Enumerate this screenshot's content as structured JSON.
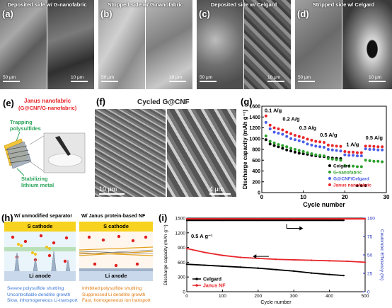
{
  "panels": {
    "a": {
      "label": "(a)",
      "title": "Deposited side w/ G-nanofabric",
      "scale_low": "50 μm",
      "scale_high": "10 μm"
    },
    "b": {
      "label": "(b)",
      "title": "Stripped side w/ G-nanofabric",
      "scale_low": "50 μm",
      "scale_high": "10 μm"
    },
    "c": {
      "label": "(c)",
      "title": "Deposited side w/ Celgard",
      "scale_low": "50 μm",
      "scale_high": "10 μm"
    },
    "d": {
      "label": "(d)",
      "title": "Stripped side w/ Celgard",
      "scale_low": "50 μm",
      "scale_high": "10 μm"
    },
    "e": {
      "label": "(e)",
      "title_1": "Janus nanofabric",
      "title_2": "(G@CNF/G-nanofabric)",
      "callout_top_1": "Trapping",
      "callout_top_2": "polysulfides",
      "callout_bottom_1": "Stabilizing",
      "callout_bottom_2": "lithium metal"
    },
    "f": {
      "label": "(f)",
      "title": "Cycled G@CNF",
      "scale_low": "10 μm",
      "scale_high": "4 μm"
    },
    "g": {
      "label": "(g)",
      "ylabel": "Discharge capacity (mAh g⁻¹)",
      "xlabel": "Cycle number",
      "rates": [
        "0.1 A/g",
        "0.2 A/g",
        "0.3 A/g",
        "0.5 A/g",
        "1 A/g",
        "0.5 A/g"
      ]
    },
    "h": {
      "label": "(h)",
      "left_title": "W/ unmodified separator",
      "right_title": "W/ Janus protein-based NF",
      "cathode": "S cathode",
      "anode": "Li anode",
      "left_notes": [
        "Severe polysulfide shuttling",
        "Uncontrollable dendrite growth",
        "Slow, inhomogeneous Li-transport"
      ],
      "right_notes": [
        "Inhibited polysulfide shuttling",
        "Suppressed Li dendrite growth",
        "Fast, homogeneous ion transport"
      ]
    },
    "i": {
      "label": "(i)",
      "ylabel": "Discharge capacity (mAh g⁻¹)",
      "y2label": "Coulombic Efficiency (%)",
      "xlabel": "Cycle number",
      "rate": "0.5 A g⁻¹"
    }
  },
  "colors": {
    "celgard": "#000000",
    "g_nanofabric": "#2ca02c",
    "g_cnf_celgard": "#4a5ee8",
    "janus": "#e8262b",
    "title_red": "#e8262b",
    "callout_green": "#2aa35a",
    "cathode": "#f7d21e",
    "anode": "#c9d8ea",
    "ce_axis": "#2233bb"
  },
  "chart_data": [
    {
      "type": "scatter",
      "panel": "g",
      "xlabel": "Cycle number",
      "ylabel": "Discharge capacity (mAh g⁻¹)",
      "xlim": [
        0,
        30
      ],
      "ylim": [
        0,
        1600
      ],
      "xticks": [
        0,
        10,
        20,
        30
      ],
      "yticks": [
        0,
        200,
        400,
        600,
        800,
        1000,
        1200,
        1400,
        1600
      ],
      "legend": "bottom-right",
      "annotations": [
        "0.1 A/g",
        "0.2 A/g",
        "0.3 A/g",
        "0.5 A/g",
        "1 A/g",
        "0.5 A/g"
      ],
      "x": [
        1,
        2,
        3,
        4,
        5,
        6,
        7,
        8,
        9,
        10,
        11,
        12,
        13,
        14,
        15,
        16,
        17,
        18,
        19,
        20,
        21,
        22,
        23,
        24,
        25,
        26,
        27,
        28,
        29
      ],
      "series": [
        {
          "name": "Celgard",
          "color": "#000000",
          "values": [
            980,
            900,
            870,
            850,
            820,
            790,
            770,
            750,
            730,
            720,
            710,
            690,
            680,
            670,
            665,
            650,
            640,
            635,
            630,
            null,
            null,
            null,
            130,
            130,
            130,
            null,
            null,
            null,
            null
          ]
        },
        {
          "name": "G-nanofabric",
          "color": "#2ca02c",
          "values": [
            1050,
            950,
            920,
            890,
            870,
            850,
            820,
            800,
            780,
            760,
            740,
            720,
            700,
            690,
            680,
            630,
            620,
            610,
            600,
            500,
            490,
            490,
            480,
            480,
            600,
            590,
            580,
            580,
            570
          ]
        },
        {
          "name": "G@CNF/Celgard",
          "color": "#4a5ee8",
          "values": [
            1300,
            1180,
            1120,
            1100,
            1080,
            1040,
            1000,
            980,
            960,
            940,
            900,
            880,
            860,
            850,
            840,
            800,
            790,
            780,
            770,
            700,
            690,
            690,
            680,
            680,
            810,
            800,
            800,
            790,
            790
          ]
        },
        {
          "name": "Janus nanofabric",
          "color": "#e8262b",
          "values": [
            1420,
            1250,
            1200,
            1180,
            1160,
            1120,
            1090,
            1060,
            1040,
            1020,
            990,
            970,
            950,
            940,
            930,
            880,
            870,
            860,
            855,
            760,
            750,
            750,
            740,
            740,
            860,
            860,
            855,
            850,
            850
          ]
        }
      ]
    },
    {
      "type": "line",
      "panel": "i",
      "xlabel": "Cycle number",
      "ylabel": "Discharge capacity (mAh g⁻¹)",
      "y2label": "Coulombic Efficiency (%)",
      "xlim": [
        0,
        500
      ],
      "ylim": [
        0,
        1500
      ],
      "y2lim": [
        0,
        100
      ],
      "xticks": [
        0,
        100,
        200,
        300,
        400,
        500
      ],
      "yticks": [
        0,
        300,
        600,
        900,
        1200,
        1500
      ],
      "y2ticks": [
        0,
        25,
        50,
        75,
        100
      ],
      "annotation": "0.5 A g⁻¹",
      "legend": "bottom-left",
      "series": [
        {
          "name": "Celgard",
          "color": "#000000",
          "x": [
            0,
            50,
            100,
            150,
            200,
            250,
            300,
            350,
            400,
            440
          ],
          "values": [
            560,
            540,
            520,
            500,
            480,
            450,
            420,
            380,
            350,
            330
          ]
        },
        {
          "name": "Janus NF",
          "color": "#e8262b",
          "x": [
            0,
            50,
            100,
            150,
            200,
            250,
            300,
            350,
            400,
            450,
            500
          ],
          "values": [
            880,
            800,
            740,
            700,
            680,
            660,
            650,
            640,
            630,
            620,
            600
          ]
        },
        {
          "name": "Celgard CE",
          "color": "#000000",
          "axis": "y2",
          "x": [
            0,
            100,
            200,
            300,
            400,
            440
          ],
          "values": [
            97,
            97,
            97,
            97,
            97,
            97
          ]
        },
        {
          "name": "Janus NF CE",
          "color": "#e8262b",
          "axis": "y2",
          "x": [
            0,
            100,
            200,
            300,
            400,
            500
          ],
          "values": [
            99,
            99,
            99,
            99,
            99,
            99
          ]
        }
      ]
    }
  ]
}
